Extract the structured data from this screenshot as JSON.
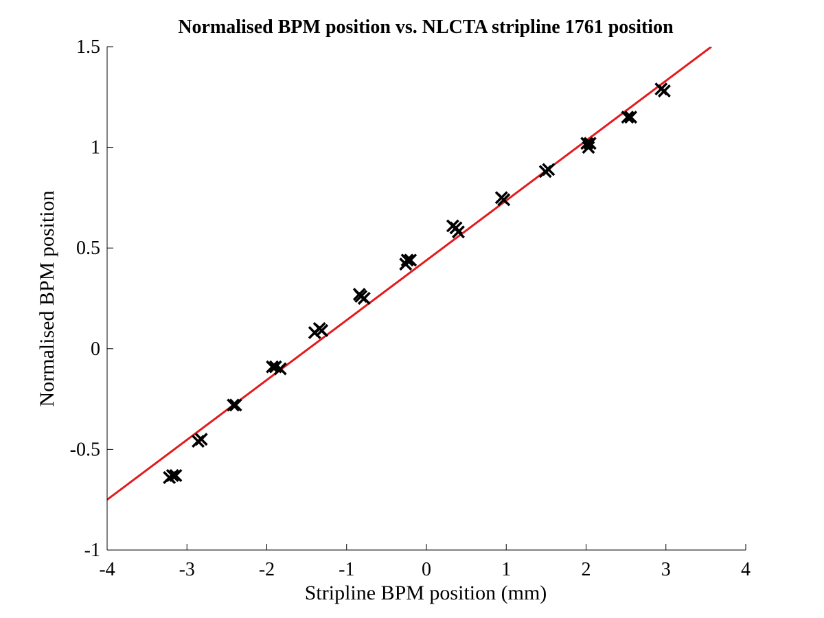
{
  "chart_data": {
    "type": "scatter",
    "title": "Normalised BPM position vs. NLCTA stripline 1761 position",
    "xlabel": "Stripline BPM position (mm)",
    "ylabel": "Normalised BPM position",
    "xlim": [
      -4,
      4
    ],
    "ylim": [
      -1,
      1.5
    ],
    "xticks": [
      -4,
      -3,
      -2,
      -1,
      0,
      1,
      2,
      3,
      4
    ],
    "yticks": [
      -1,
      -0.5,
      0,
      0.5,
      1,
      1.5
    ],
    "xtick_labels": [
      "-4",
      "-3",
      "-2",
      "-1",
      "0",
      "1",
      "2",
      "3",
      "4"
    ],
    "ytick_labels": [
      "-1",
      "-0.5",
      "0",
      "0.5",
      "1",
      "1.5"
    ],
    "grid": false,
    "series": [
      {
        "kind": "points",
        "marker": "x",
        "color": "#000000",
        "points": [
          {
            "x": -3.22,
            "y": -0.64
          },
          {
            "x": -3.18,
            "y": -0.63
          },
          {
            "x": -3.14,
            "y": -0.63
          },
          {
            "x": -2.86,
            "y": -0.46
          },
          {
            "x": -2.82,
            "y": -0.45
          },
          {
            "x": -2.42,
            "y": -0.28
          },
          {
            "x": -2.39,
            "y": -0.28
          },
          {
            "x": -1.93,
            "y": -0.09
          },
          {
            "x": -1.89,
            "y": -0.09
          },
          {
            "x": -1.83,
            "y": -0.1
          },
          {
            "x": -1.4,
            "y": 0.08
          },
          {
            "x": -1.34,
            "y": 0.1
          },
          {
            "x": -1.31,
            "y": 0.09
          },
          {
            "x": -0.84,
            "y": 0.27
          },
          {
            "x": -0.82,
            "y": 0.26
          },
          {
            "x": -0.78,
            "y": 0.25
          },
          {
            "x": -0.26,
            "y": 0.42
          },
          {
            "x": -0.24,
            "y": 0.44
          },
          {
            "x": -0.2,
            "y": 0.44
          },
          {
            "x": 0.33,
            "y": 0.61
          },
          {
            "x": 0.37,
            "y": 0.6
          },
          {
            "x": 0.4,
            "y": 0.58
          },
          {
            "x": 0.94,
            "y": 0.75
          },
          {
            "x": 0.97,
            "y": 0.74
          },
          {
            "x": 1.49,
            "y": 0.88
          },
          {
            "x": 1.53,
            "y": 0.89
          },
          {
            "x": 2.01,
            "y": 1.02
          },
          {
            "x": 2.03,
            "y": 1.0
          },
          {
            "x": 2.05,
            "y": 1.02
          },
          {
            "x": 2.52,
            "y": 1.15
          },
          {
            "x": 2.56,
            "y": 1.15
          },
          {
            "x": 2.94,
            "y": 1.29
          },
          {
            "x": 2.98,
            "y": 1.28
          }
        ]
      },
      {
        "kind": "line",
        "color": "#e31a1c",
        "x": [
          -4,
          3.57
        ],
        "y": [
          -0.75,
          1.5
        ]
      }
    ]
  }
}
